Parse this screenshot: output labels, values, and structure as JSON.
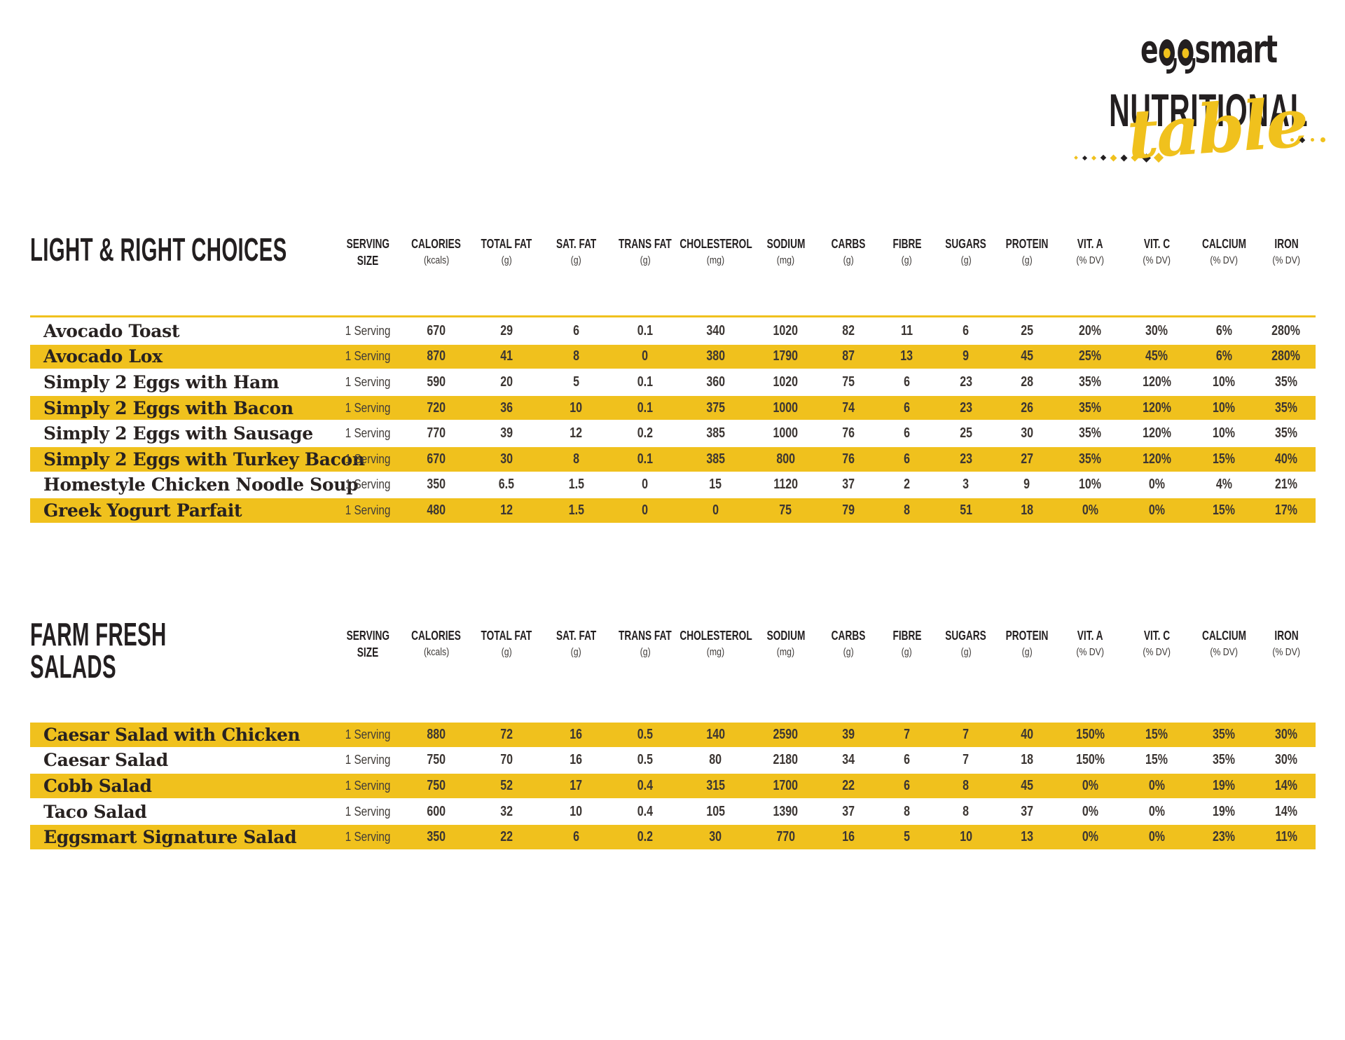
{
  "colors": {
    "accent": "#F0C11D",
    "ink": "#231F20"
  },
  "logo": {
    "brand": "eggsmart",
    "brand_e": "e",
    "brand_rest": "smart",
    "line1": "NUTRITIONAL",
    "line2": "table"
  },
  "columns": [
    {
      "slug": "serving-size",
      "label": "SERVING",
      "sub": "SIZE",
      "sub_is_label": true
    },
    {
      "slug": "calories",
      "label": "CALORIES",
      "sub": "(kcals)"
    },
    {
      "slug": "total-fat",
      "label": "TOTAL FAT",
      "sub": "(g)"
    },
    {
      "slug": "sat-fat",
      "label": "SAT. FAT",
      "sub": "(g)"
    },
    {
      "slug": "trans-fat",
      "label": "TRANS FAT",
      "sub": "(g)"
    },
    {
      "slug": "cholesterol",
      "label": "CHOLESTEROL",
      "sub": "(mg)"
    },
    {
      "slug": "sodium",
      "label": "SODIUM",
      "sub": "(mg)"
    },
    {
      "slug": "carbs",
      "label": "CARBS",
      "sub": "(g)"
    },
    {
      "slug": "fibre",
      "label": "FIBRE",
      "sub": "(g)"
    },
    {
      "slug": "sugars",
      "label": "SUGARS",
      "sub": "(g)"
    },
    {
      "slug": "protein",
      "label": "PROTEIN",
      "sub": "(g)"
    },
    {
      "slug": "vit-a",
      "label": "VIT. A",
      "sub": "(% DV)"
    },
    {
      "slug": "vit-c",
      "label": "VIT. C",
      "sub": "(% DV)"
    },
    {
      "slug": "calcium",
      "label": "CALCIUM",
      "sub": "(% DV)"
    },
    {
      "slug": "iron",
      "label": "IRON",
      "sub": "(% DV)"
    }
  ],
  "sections": [
    {
      "title_lines": [
        "LIGHT & RIGHT CHOICES"
      ],
      "rows": [
        {
          "name": "Avocado Toast",
          "highlight": false,
          "values": [
            "1 Serving",
            "670",
            "29",
            "6",
            "0.1",
            "340",
            "1020",
            "82",
            "11",
            "6",
            "25",
            "20%",
            "30%",
            "6%",
            "280%"
          ]
        },
        {
          "name": "Avocado Lox",
          "highlight": true,
          "values": [
            "1 Serving",
            "870",
            "41",
            "8",
            "0",
            "380",
            "1790",
            "87",
            "13",
            "9",
            "45",
            "25%",
            "45%",
            "6%",
            "280%"
          ]
        },
        {
          "name": "Simply 2 Eggs with Ham",
          "highlight": false,
          "values": [
            "1 Serving",
            "590",
            "20",
            "5",
            "0.1",
            "360",
            "1020",
            "75",
            "6",
            "23",
            "28",
            "35%",
            "120%",
            "10%",
            "35%"
          ]
        },
        {
          "name": "Simply 2 Eggs with Bacon",
          "highlight": true,
          "values": [
            "1 Serving",
            "720",
            "36",
            "10",
            "0.1",
            "375",
            "1000",
            "74",
            "6",
            "23",
            "26",
            "35%",
            "120%",
            "10%",
            "35%"
          ]
        },
        {
          "name": "Simply 2 Eggs with Sausage",
          "highlight": false,
          "values": [
            "1 Serving",
            "770",
            "39",
            "12",
            "0.2",
            "385",
            "1000",
            "76",
            "6",
            "25",
            "30",
            "35%",
            "120%",
            "10%",
            "35%"
          ]
        },
        {
          "name": "Simply 2 Eggs with Turkey Bacon",
          "highlight": true,
          "values": [
            "1 Serving",
            "670",
            "30",
            "8",
            "0.1",
            "385",
            "800",
            "76",
            "6",
            "23",
            "27",
            "35%",
            "120%",
            "15%",
            "40%"
          ]
        },
        {
          "name": "Homestyle Chicken Noodle Soup",
          "highlight": false,
          "values": [
            "1 Serving",
            "350",
            "6.5",
            "1.5",
            "0",
            "15",
            "1120",
            "37",
            "2",
            "3",
            "9",
            "10%",
            "0%",
            "4%",
            "21%"
          ]
        },
        {
          "name": "Greek Yogurt Parfait",
          "highlight": true,
          "values": [
            "1 Serving",
            "480",
            "12",
            "1.5",
            "0",
            "0",
            "75",
            "79",
            "8",
            "51",
            "18",
            "0%",
            "0%",
            "15%",
            "17%"
          ]
        }
      ]
    },
    {
      "title_lines": [
        "FARM FRESH",
        "SALADS"
      ],
      "rows": [
        {
          "name": "Caesar Salad with Chicken",
          "highlight": true,
          "values": [
            "1 Serving",
            "880",
            "72",
            "16",
            "0.5",
            "140",
            "2590",
            "39",
            "7",
            "7",
            "40",
            "150%",
            "15%",
            "35%",
            "30%"
          ]
        },
        {
          "name": "Caesar Salad",
          "highlight": false,
          "values": [
            "1 Serving",
            "750",
            "70",
            "16",
            "0.5",
            "80",
            "2180",
            "34",
            "6",
            "7",
            "18",
            "150%",
            "15%",
            "35%",
            "30%"
          ]
        },
        {
          "name": "Cobb Salad",
          "highlight": true,
          "values": [
            "1 Serving",
            "750",
            "52",
            "17",
            "0.4",
            "315",
            "1700",
            "22",
            "6",
            "8",
            "45",
            "0%",
            "0%",
            "19%",
            "14%"
          ]
        },
        {
          "name": "Taco Salad",
          "highlight": false,
          "values": [
            "1 Serving",
            "600",
            "32",
            "10",
            "0.4",
            "105",
            "1390",
            "37",
            "8",
            "8",
            "37",
            "0%",
            "0%",
            "19%",
            "14%"
          ]
        },
        {
          "name": "Eggsmart Signature Salad",
          "highlight": true,
          "values": [
            "1 Serving",
            "350",
            "22",
            "6",
            "0.2",
            "30",
            "770",
            "16",
            "5",
            "10",
            "13",
            "0%",
            "0%",
            "23%",
            "11%"
          ]
        }
      ]
    }
  ]
}
